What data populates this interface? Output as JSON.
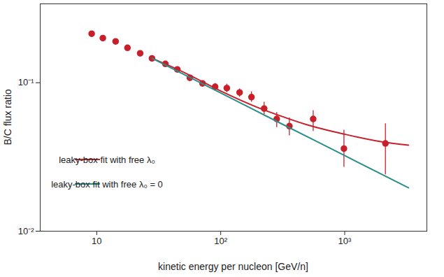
{
  "chart_data": {
    "type": "scatter",
    "x_label": "kinetic energy per nucleon [GeV/n]",
    "y_label": "B/C flux ratio",
    "log": true,
    "xlim": [
      3.5,
      4600
    ],
    "ylim": [
      0.01,
      0.34
    ],
    "xticks": [
      10,
      {
        "value": 100,
        "label": "10²"
      },
      {
        "value": 1000,
        "label": "10³"
      }
    ],
    "yticks": [
      {
        "value": 0.01,
        "label": "10⁻²"
      },
      {
        "value": 0.1,
        "label": "10⁻¹"
      }
    ],
    "legend": "lower left",
    "series": [
      {
        "type": "scatter",
        "color": "#c8202a",
        "marker": "circle",
        "x": [
          9.1,
          11.2,
          14.2,
          17.7,
          22.4,
          27.9,
          35.8,
          44.7,
          56.4,
          71.3,
          90.1,
          112,
          142,
          177,
          224,
          283,
          358,
          557,
          986,
          2130
        ],
        "values": [
          0.214,
          0.2,
          0.19,
          0.172,
          0.158,
          0.146,
          0.134,
          0.123,
          0.108,
          0.099,
          0.094,
          0.092,
          0.086,
          0.08,
          0.067,
          0.057,
          0.051,
          0.057,
          0.036,
          0.039
        ],
        "y_low": [
          0.205,
          0.193,
          0.183,
          0.166,
          0.152,
          0.141,
          0.13,
          0.119,
          0.105,
          0.096,
          0.088,
          0.086,
          0.08,
          0.074,
          0.061,
          0.05,
          0.044,
          0.047,
          0.027,
          0.024
        ],
        "y_high": [
          0.222,
          0.207,
          0.196,
          0.178,
          0.164,
          0.151,
          0.138,
          0.127,
          0.112,
          0.102,
          0.099,
          0.098,
          0.091,
          0.087,
          0.074,
          0.063,
          0.058,
          0.065,
          0.048,
          0.053
        ]
      },
      {
        "name": "leaky-box fit with free λ₀",
        "type": "line",
        "color": "#c8202a",
        "line_style": "solid",
        "x": [
          28,
          50,
          100,
          200,
          300,
          500,
          1000,
          2000,
          3270
        ],
        "values": [
          0.146,
          0.118,
          0.088,
          0.068,
          0.06,
          0.052,
          0.045,
          0.04,
          0.038
        ]
      },
      {
        "name": "leaky-box fit with free λ₀ = 0",
        "type": "line",
        "color": "#2a8e8a",
        "line_style": "solid",
        "x": [
          28,
          100,
          300,
          1000,
          3270
        ],
        "values": [
          0.146,
          0.0853,
          0.0536,
          0.0323,
          0.0196
        ]
      }
    ]
  }
}
